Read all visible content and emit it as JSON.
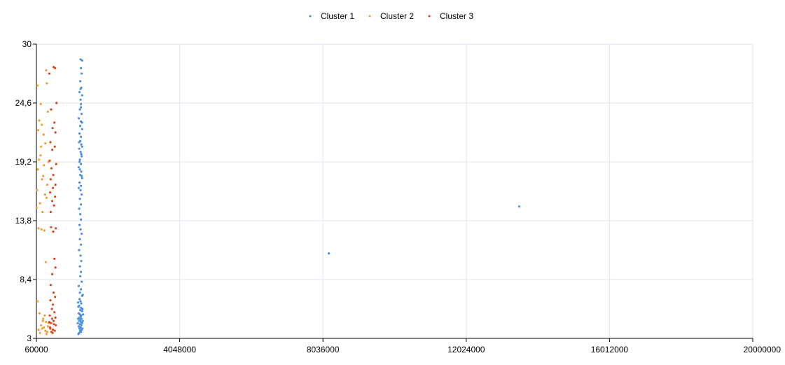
{
  "chart_data": {
    "type": "scatter",
    "title": "",
    "xlabel": "",
    "ylabel": "",
    "xlim": [
      60000,
      20000000
    ],
    "ylim": [
      3,
      30
    ],
    "xticks": [
      "60000",
      "4048000",
      "8036000",
      "12024000",
      "16012000",
      "20000000"
    ],
    "yticks": [
      "3",
      "8,4",
      "13,8",
      "19,2",
      "24,6",
      "30"
    ],
    "grid": true,
    "legend_position": "top-center",
    "series": [
      {
        "name": "Cluster 1",
        "color": "#4a8fe0",
        "points": [
          [
            1290000,
            28.6
          ],
          [
            1330000,
            28.5
          ],
          [
            1300000,
            27.8
          ],
          [
            1320000,
            27.3
          ],
          [
            1280000,
            26.6
          ],
          [
            1310000,
            26.0
          ],
          [
            1260000,
            25.6
          ],
          [
            1330000,
            25.3
          ],
          [
            1290000,
            24.9
          ],
          [
            1300000,
            24.5
          ],
          [
            1270000,
            24.0
          ],
          [
            1320000,
            23.6
          ],
          [
            1240000,
            23.2
          ],
          [
            1300000,
            22.9
          ],
          [
            1280000,
            22.5
          ],
          [
            1330000,
            22.2
          ],
          [
            1260000,
            21.8
          ],
          [
            1300000,
            21.5
          ],
          [
            1280000,
            21.1
          ],
          [
            1310000,
            20.8
          ],
          [
            1250000,
            20.4
          ],
          [
            1290000,
            20.1
          ],
          [
            1320000,
            19.7
          ],
          [
            1270000,
            19.4
          ],
          [
            1300000,
            19.0
          ],
          [
            1240000,
            18.7
          ],
          [
            1310000,
            18.3
          ],
          [
            1280000,
            18.0
          ],
          [
            1330000,
            17.7
          ],
          [
            1260000,
            17.3
          ],
          [
            1300000,
            17.0
          ],
          [
            1290000,
            16.6
          ],
          [
            1320000,
            16.2
          ],
          [
            1270000,
            15.8
          ],
          [
            1300000,
            15.3
          ],
          [
            1250000,
            14.9
          ],
          [
            1280000,
            14.4
          ],
          [
            1300000,
            13.9
          ],
          [
            1260000,
            13.4
          ],
          [
            1290000,
            13.0
          ],
          [
            1320000,
            12.6
          ],
          [
            1270000,
            12.1
          ],
          [
            1300000,
            11.6
          ],
          [
            1250000,
            11.1
          ],
          [
            1290000,
            10.6
          ],
          [
            1310000,
            10.1
          ],
          [
            1270000,
            9.6
          ],
          [
            1300000,
            9.1
          ],
          [
            1280000,
            8.7
          ],
          [
            1320000,
            8.2
          ],
          [
            1240000,
            7.8
          ],
          [
            1300000,
            7.5
          ],
          [
            1270000,
            7.2
          ],
          [
            1330000,
            6.9
          ],
          [
            1260000,
            6.6
          ],
          [
            1290000,
            6.4
          ],
          [
            1310000,
            6.2
          ],
          [
            1250000,
            6.0
          ],
          [
            1300000,
            5.8
          ],
          [
            1280000,
            5.6
          ],
          [
            1330000,
            5.5
          ],
          [
            1240000,
            5.3
          ],
          [
            1270000,
            5.2
          ],
          [
            1310000,
            5.1
          ],
          [
            1290000,
            5.0
          ],
          [
            1260000,
            4.9
          ],
          [
            1320000,
            4.8
          ],
          [
            1280000,
            4.7
          ],
          [
            1250000,
            4.6
          ],
          [
            1300000,
            4.5
          ],
          [
            1330000,
            4.4
          ],
          [
            1270000,
            4.3
          ],
          [
            1310000,
            4.2
          ],
          [
            1240000,
            4.1
          ],
          [
            1290000,
            4.0
          ],
          [
            1260000,
            3.9
          ],
          [
            1320000,
            3.8
          ],
          [
            1280000,
            3.7
          ],
          [
            1300000,
            3.6
          ],
          [
            1250000,
            3.5
          ],
          [
            1230000,
            3.4
          ],
          [
            1340000,
            5.7
          ],
          [
            1220000,
            4.8
          ],
          [
            1350000,
            4.6
          ],
          [
            1230000,
            5.9
          ],
          [
            1350000,
            7.0
          ],
          [
            1220000,
            6.3
          ],
          [
            1340000,
            3.9
          ],
          [
            1360000,
            5.2
          ],
          [
            1210000,
            4.4
          ],
          [
            1330000,
            22.8
          ],
          [
            1250000,
            21.0
          ],
          [
            1310000,
            19.9
          ],
          [
            1270000,
            18.5
          ],
          [
            1320000,
            17.9
          ],
          [
            1240000,
            16.8
          ],
          [
            1300000,
            24.2
          ],
          [
            1290000,
            25.9
          ],
          [
            1330000,
            20.6
          ],
          [
            1260000,
            19.2
          ],
          [
            8200000,
            10.8
          ],
          [
            13500000,
            15.1
          ]
        ]
      },
      {
        "name": "Cluster 2",
        "color": "#f0a030",
        "points": [
          [
            90000,
            26.2
          ],
          [
            330000,
            27.6
          ],
          [
            180000,
            24.5
          ],
          [
            380000,
            23.8
          ],
          [
            110000,
            22.1
          ],
          [
            260000,
            21.7
          ],
          [
            190000,
            20.6
          ],
          [
            310000,
            20.9
          ],
          [
            130000,
            19.4
          ],
          [
            400000,
            19.2
          ],
          [
            100000,
            18.5
          ],
          [
            270000,
            18.9
          ],
          [
            220000,
            17.6
          ],
          [
            360000,
            17.1
          ],
          [
            80000,
            16.6
          ],
          [
            300000,
            16.2
          ],
          [
            160000,
            15.4
          ],
          [
            340000,
            15.9
          ],
          [
            70000,
            15.0
          ],
          [
            230000,
            14.6
          ],
          [
            120000,
            13.1
          ],
          [
            280000,
            12.9
          ],
          [
            200000,
            13.0
          ],
          [
            320000,
            10.0
          ],
          [
            90000,
            6.4
          ],
          [
            150000,
            5.3
          ],
          [
            250000,
            4.8
          ],
          [
            330000,
            4.5
          ],
          [
            190000,
            4.2
          ],
          [
            270000,
            4.0
          ],
          [
            120000,
            3.8
          ],
          [
            310000,
            3.7
          ],
          [
            360000,
            3.6
          ],
          [
            220000,
            3.9
          ],
          [
            290000,
            5.1
          ],
          [
            400000,
            4.4
          ],
          [
            160000,
            3.5
          ],
          [
            240000,
            4.6
          ],
          [
            340000,
            3.4
          ],
          [
            380000,
            4.1
          ],
          [
            350000,
            26.4
          ],
          [
            140000,
            23.0
          ],
          [
            210000,
            22.6
          ],
          [
            250000,
            17.9
          ],
          [
            175000,
            19.8
          ]
        ]
      },
      {
        "name": "Cluster 3",
        "color": "#d84a1b",
        "points": [
          [
            540000,
            27.9
          ],
          [
            580000,
            27.8
          ],
          [
            420000,
            27.3
          ],
          [
            620000,
            24.6
          ],
          [
            470000,
            24.0
          ],
          [
            560000,
            22.8
          ],
          [
            510000,
            22.3
          ],
          [
            590000,
            21.9
          ],
          [
            450000,
            21.0
          ],
          [
            570000,
            20.6
          ],
          [
            500000,
            20.3
          ],
          [
            430000,
            19.3
          ],
          [
            610000,
            19.0
          ],
          [
            480000,
            18.6
          ],
          [
            530000,
            18.0
          ],
          [
            460000,
            17.6
          ],
          [
            590000,
            17.1
          ],
          [
            520000,
            16.8
          ],
          [
            440000,
            16.4
          ],
          [
            580000,
            16.0
          ],
          [
            500000,
            15.6
          ],
          [
            550000,
            15.2
          ],
          [
            460000,
            14.6
          ],
          [
            600000,
            13.1
          ],
          [
            470000,
            13.2
          ],
          [
            530000,
            12.8
          ],
          [
            560000,
            10.3
          ],
          [
            590000,
            9.5
          ],
          [
            500000,
            8.9
          ],
          [
            460000,
            7.9
          ],
          [
            540000,
            7.2
          ],
          [
            580000,
            6.8
          ],
          [
            450000,
            6.5
          ],
          [
            520000,
            6.1
          ],
          [
            490000,
            5.7
          ],
          [
            560000,
            5.4
          ],
          [
            430000,
            5.1
          ],
          [
            500000,
            4.8
          ],
          [
            540000,
            4.6
          ],
          [
            470000,
            4.4
          ],
          [
            600000,
            4.2
          ],
          [
            440000,
            4.0
          ],
          [
            520000,
            3.8
          ],
          [
            570000,
            3.7
          ],
          [
            480000,
            3.6
          ],
          [
            450000,
            3.9
          ],
          [
            550000,
            4.3
          ],
          [
            510000,
            3.5
          ],
          [
            590000,
            4.9
          ],
          [
            420000,
            4.5
          ]
        ]
      }
    ]
  }
}
